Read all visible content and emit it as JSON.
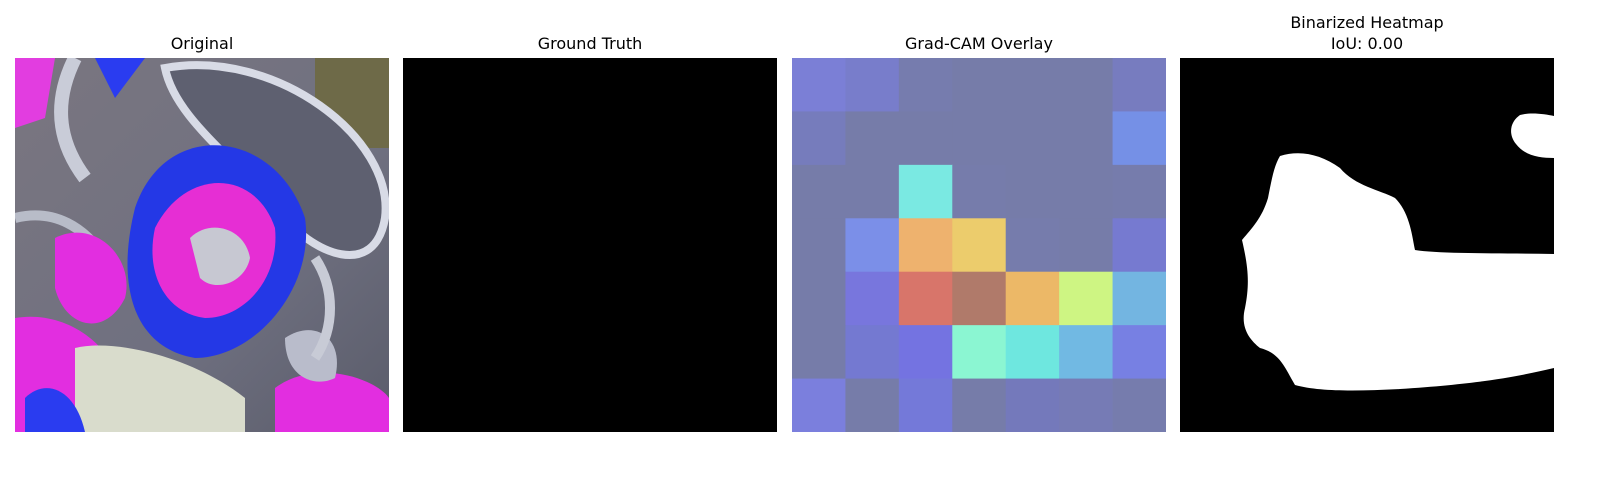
{
  "panels": [
    {
      "title": "Original"
    },
    {
      "title": "Ground Truth"
    },
    {
      "title": "Grad-CAM Overlay"
    },
    {
      "title": "Binarized Heatmap",
      "subtitle": "IoU: 0.00"
    }
  ],
  "gradcam_grid": [
    [
      "#7b7fd6",
      "#787dcb",
      "#767cae",
      "#767ca9",
      "#767ca9",
      "#767ca9",
      "#777cbf"
    ],
    [
      "#767cbc",
      "#767ca9",
      "#767ca9",
      "#767ca9",
      "#767ca9",
      "#767ca9",
      "#7590e6"
    ],
    [
      "#767ca9",
      "#767ca9",
      "#7ae9e2",
      "#767cab",
      "#767ca9",
      "#767ca9",
      "#767cac"
    ],
    [
      "#767ca9",
      "#7b8fe8",
      "#eeb26e",
      "#eccc6c",
      "#767cac",
      "#767ca9",
      "#767ad0"
    ],
    [
      "#767ca9",
      "#7876dd",
      "#d8756a",
      "#b07a6a",
      "#ecb867",
      "#cef583",
      "#73b5e1"
    ],
    [
      "#767ca9",
      "#7479d1",
      "#7473e1",
      "#8bf6d2",
      "#6ee7df",
      "#71b9e3",
      "#7780e3"
    ],
    [
      "#7b7fdd",
      "#767ca9",
      "#7479d9",
      "#767ca9",
      "#7479bb",
      "#767bb5",
      "#767cad"
    ]
  ]
}
